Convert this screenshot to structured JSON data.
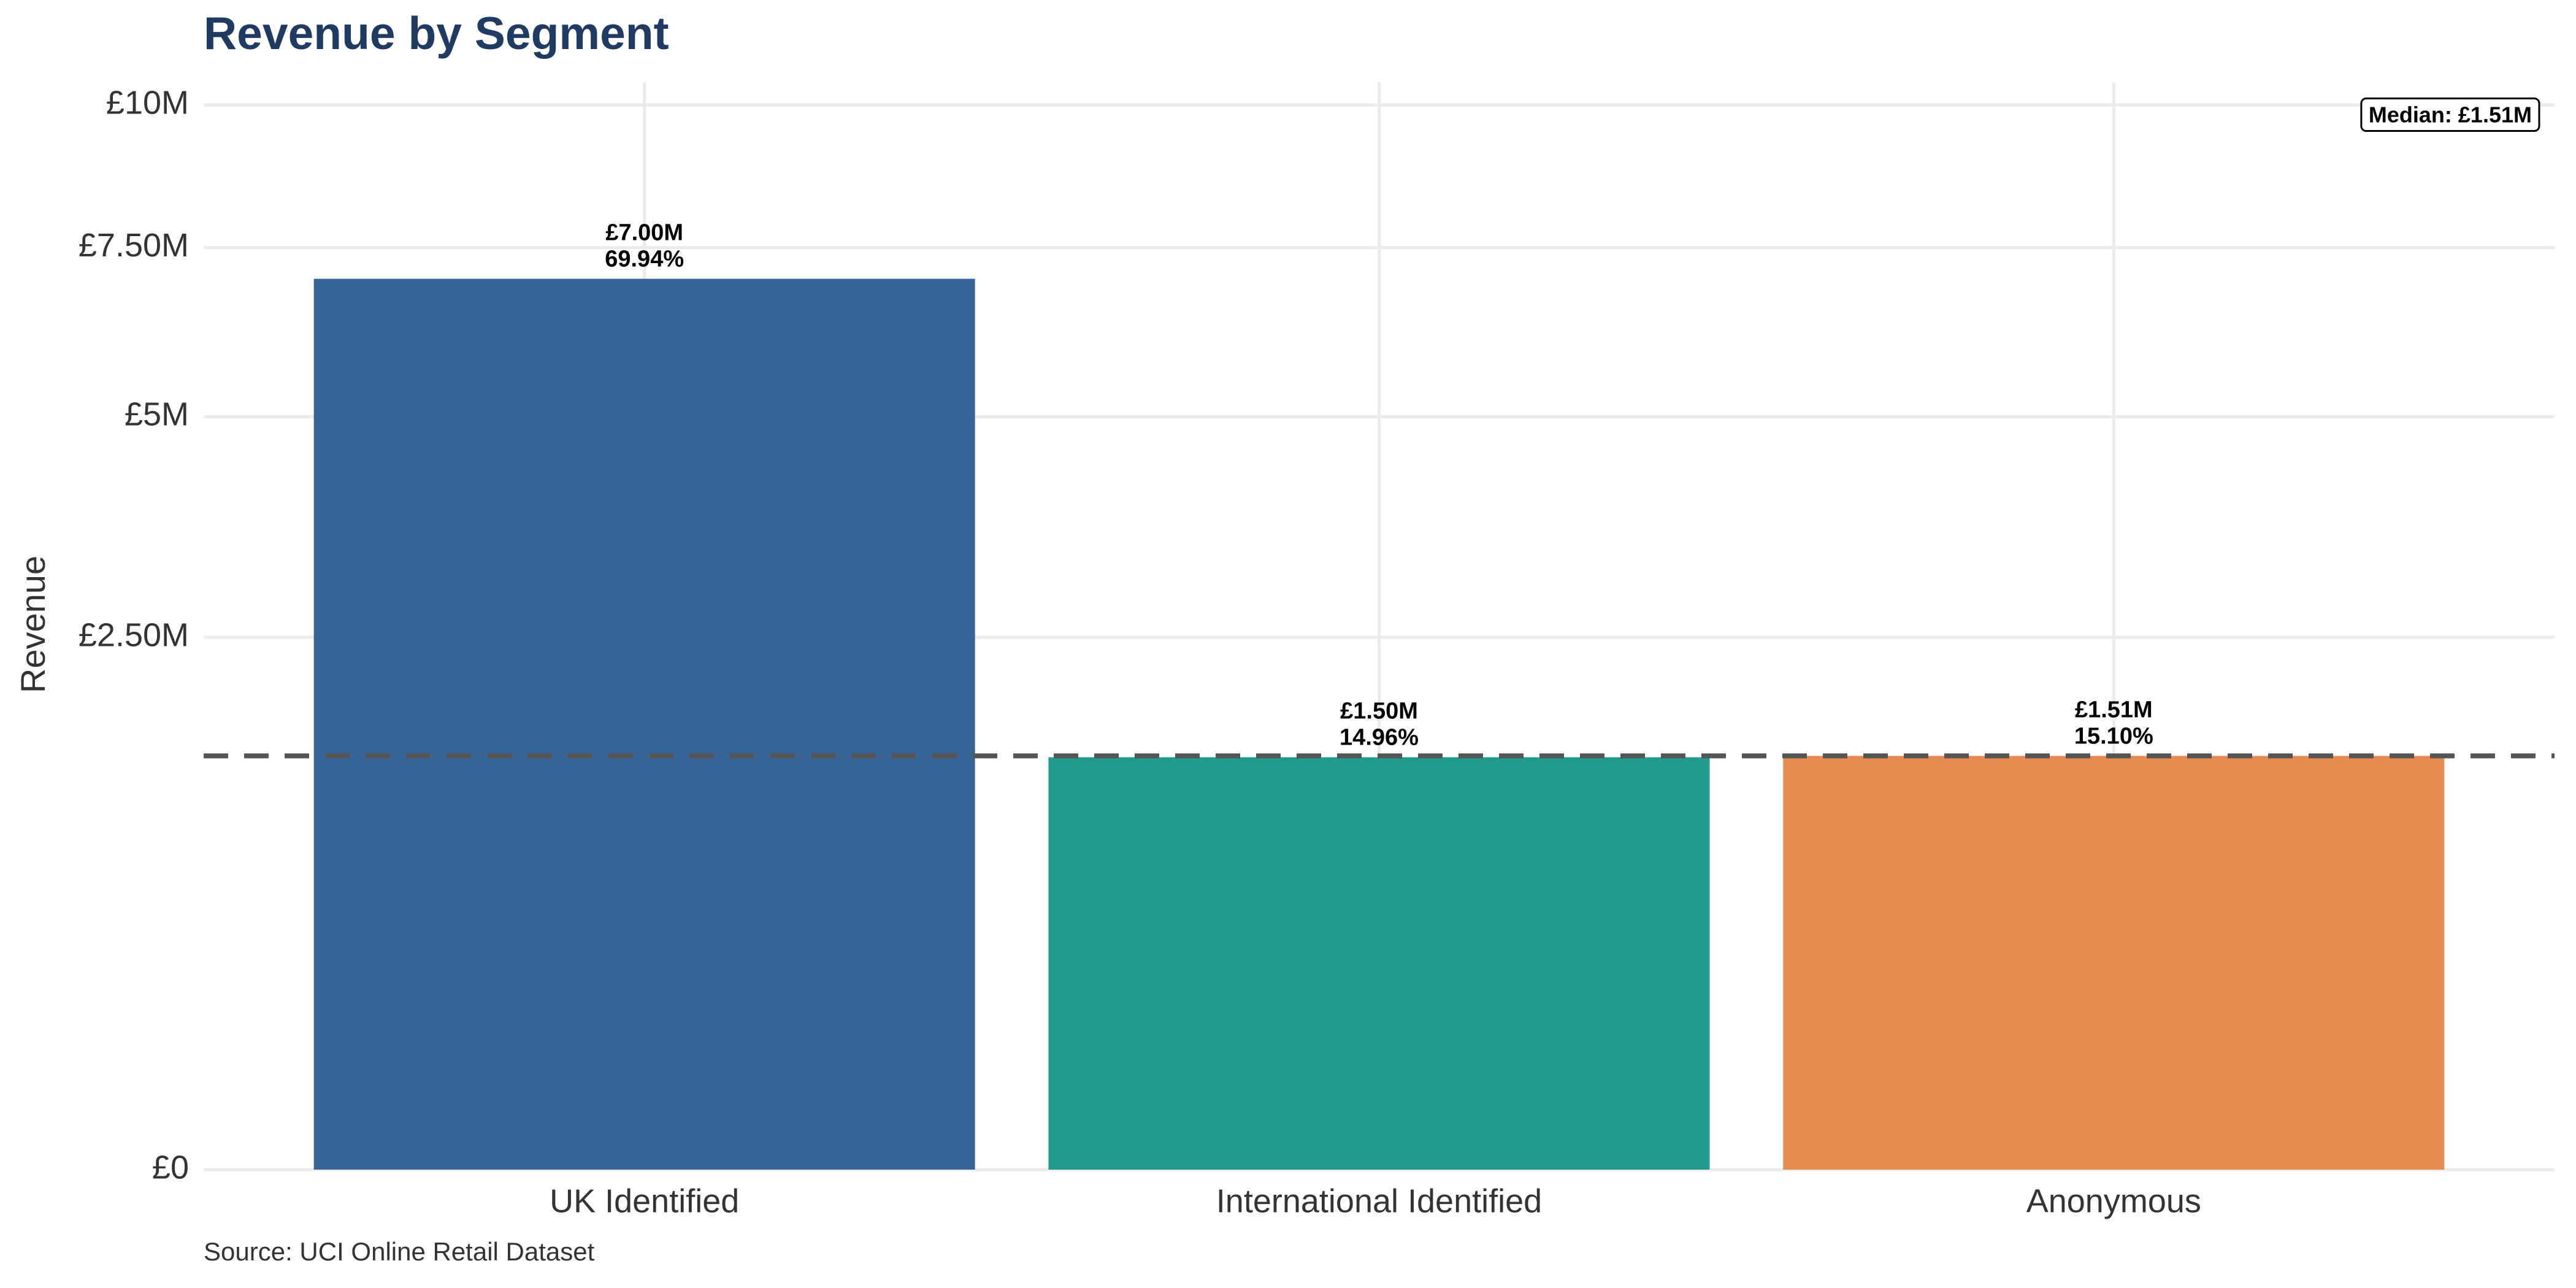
{
  "chart_data": {
    "type": "bar",
    "title": "Revenue by Segment",
    "y_label": "Revenue",
    "source": "Source: UCI Online Retail Dataset",
    "categories": [
      "UK Identified",
      "International Identified",
      "Anonymous"
    ],
    "values": [
      7000000,
      1500000,
      1510000
    ],
    "value_labels": [
      "£7.00M",
      "£1.50M",
      "£1.51M"
    ],
    "shares": [
      69.94,
      14.96,
      15.1
    ],
    "share_labels": [
      "69.94%",
      "14.96%",
      "15.10%"
    ],
    "colors": [
      "#366497",
      "#21998b",
      "#e68a52"
    ],
    "ylim": [
      0,
      10000000
    ],
    "yticks": [
      {
        "value": 0,
        "label": "£0"
      },
      {
        "value": 2500000,
        "label": "£2.50M"
      },
      {
        "value": 5000000,
        "label": "£5M"
      },
      {
        "value": 7500000,
        "label": "£7.50M"
      },
      {
        "value": 10000000,
        "label": "£10M"
      }
    ],
    "y_scale": "sqrt",
    "grid": true,
    "median": {
      "value": 1510000,
      "label": "Median: £1.51M"
    }
  }
}
